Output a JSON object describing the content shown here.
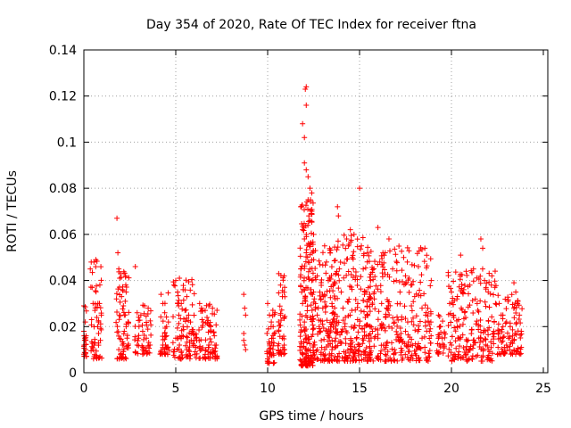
{
  "chart_data": {
    "type": "scatter",
    "title": "Day 354 of 2020, Rate Of TEC Index for receiver ftna",
    "xlabel": "GPS time / hours",
    "ylabel": "ROTI / TECUs",
    "xlim": [
      0,
      24
    ],
    "ylim": [
      0,
      0.14
    ],
    "xticks": [
      0,
      5,
      10,
      15,
      20,
      25
    ],
    "xtick_labels": [
      "0",
      "5",
      "10",
      "15",
      "20",
      "25"
    ],
    "yticks": [
      0,
      0.02,
      0.04,
      0.06,
      0.08,
      0.1,
      0.12,
      0.14
    ],
    "ytick_labels": [
      "0",
      "0.02",
      "0.04",
      "0.06",
      "0.08",
      "0.1",
      "0.12",
      "0.14"
    ],
    "grid": true,
    "marker": "+",
    "color": "#ff0000",
    "series": [
      {
        "name": "ROTI",
        "points": [
          [
            0.0,
            0.029
          ],
          [
            0.0,
            0.018
          ],
          [
            0.02,
            0.012
          ],
          [
            0.05,
            0.015
          ],
          [
            0.08,
            0.022
          ],
          [
            0.1,
            0.01
          ],
          [
            0.12,
            0.016
          ],
          [
            0.35,
            0.045
          ],
          [
            0.4,
            0.048
          ],
          [
            0.45,
            0.037
          ],
          [
            0.5,
            0.03
          ],
          [
            0.55,
            0.048
          ],
          [
            0.6,
            0.027
          ],
          [
            0.65,
            0.049
          ],
          [
            0.7,
            0.024
          ],
          [
            0.75,
            0.02
          ],
          [
            0.8,
            0.017
          ],
          [
            0.85,
            0.03
          ],
          [
            0.9,
            0.014
          ],
          [
            0.95,
            0.025
          ],
          [
            0.5,
            0.01
          ],
          [
            0.6,
            0.013
          ],
          [
            0.7,
            0.007
          ],
          [
            0.8,
            0.022
          ],
          [
            1.8,
            0.067
          ],
          [
            1.85,
            0.052
          ],
          [
            1.9,
            0.045
          ],
          [
            1.95,
            0.041
          ],
          [
            2.0,
            0.043
          ],
          [
            2.05,
            0.033
          ],
          [
            2.1,
            0.036
          ],
          [
            2.15,
            0.029
          ],
          [
            2.2,
            0.025
          ],
          [
            2.25,
            0.031
          ],
          [
            2.3,
            0.02
          ],
          [
            2.35,
            0.015
          ],
          [
            1.9,
            0.01
          ],
          [
            2.0,
            0.008
          ],
          [
            2.1,
            0.012
          ],
          [
            2.2,
            0.018
          ],
          [
            2.3,
            0.035
          ],
          [
            2.4,
            0.022
          ],
          [
            2.8,
            0.046
          ],
          [
            2.9,
            0.026
          ],
          [
            3.0,
            0.02
          ],
          [
            3.1,
            0.025
          ],
          [
            3.2,
            0.018
          ],
          [
            3.3,
            0.029
          ],
          [
            3.4,
            0.015
          ],
          [
            3.5,
            0.028
          ],
          [
            3.6,
            0.012
          ],
          [
            2.9,
            0.012
          ],
          [
            3.2,
            0.01
          ],
          [
            4.2,
            0.034
          ],
          [
            4.3,
            0.03
          ],
          [
            4.4,
            0.026
          ],
          [
            4.5,
            0.02
          ],
          [
            4.6,
            0.022
          ],
          [
            4.3,
            0.012
          ],
          [
            4.5,
            0.016
          ],
          [
            4.4,
            0.009
          ],
          [
            4.9,
            0.038
          ],
          [
            5.0,
            0.04
          ],
          [
            5.1,
            0.035
          ],
          [
            5.2,
            0.041
          ],
          [
            5.3,
            0.03
          ],
          [
            5.4,
            0.036
          ],
          [
            5.5,
            0.027
          ],
          [
            5.6,
            0.033
          ],
          [
            5.7,
            0.025
          ],
          [
            5.0,
            0.015
          ],
          [
            5.2,
            0.012
          ],
          [
            5.4,
            0.02
          ],
          [
            5.6,
            0.01
          ],
          [
            5.8,
            0.022
          ],
          [
            5.9,
            0.018
          ],
          [
            6.0,
            0.014
          ],
          [
            6.1,
            0.011
          ],
          [
            6.3,
            0.03
          ],
          [
            6.4,
            0.028
          ],
          [
            6.5,
            0.022
          ],
          [
            6.6,
            0.027
          ],
          [
            6.7,
            0.024
          ],
          [
            6.8,
            0.029
          ],
          [
            6.9,
            0.02
          ],
          [
            7.0,
            0.028
          ],
          [
            7.1,
            0.016
          ],
          [
            7.2,
            0.012
          ],
          [
            6.4,
            0.01
          ],
          [
            6.6,
            0.008
          ],
          [
            6.8,
            0.012
          ],
          [
            7.0,
            0.01
          ],
          [
            8.7,
            0.034
          ],
          [
            8.75,
            0.028
          ],
          [
            8.8,
            0.025
          ],
          [
            8.7,
            0.017
          ],
          [
            8.75,
            0.012
          ],
          [
            8.8,
            0.01
          ],
          [
            8.7,
            0.014
          ],
          [
            10.0,
            0.03
          ],
          [
            10.1,
            0.025
          ],
          [
            10.2,
            0.022
          ],
          [
            10.3,
            0.02
          ],
          [
            10.1,
            0.012
          ],
          [
            10.2,
            0.008
          ],
          [
            10.3,
            0.015
          ],
          [
            10.4,
            0.026
          ],
          [
            10.0,
            0.006
          ],
          [
            10.6,
            0.043
          ],
          [
            10.7,
            0.038
          ],
          [
            10.8,
            0.033
          ],
          [
            10.9,
            0.042
          ],
          [
            10.7,
            0.025
          ],
          [
            10.8,
            0.015
          ],
          [
            10.9,
            0.012
          ],
          [
            10.6,
            0.018
          ],
          [
            11.8,
            0.072
          ],
          [
            11.9,
            0.108
          ],
          [
            12.0,
            0.102
          ],
          [
            12.05,
            0.123
          ],
          [
            12.1,
            0.124
          ],
          [
            12.1,
            0.116
          ],
          [
            12.0,
            0.091
          ],
          [
            12.1,
            0.088
          ],
          [
            12.2,
            0.085
          ],
          [
            12.3,
            0.08
          ],
          [
            12.4,
            0.078
          ],
          [
            12.2,
            0.075
          ],
          [
            12.3,
            0.066
          ],
          [
            12.4,
            0.07
          ],
          [
            11.9,
            0.062
          ],
          [
            12.0,
            0.058
          ],
          [
            12.1,
            0.052
          ],
          [
            12.2,
            0.048
          ],
          [
            12.3,
            0.045
          ],
          [
            12.4,
            0.04
          ],
          [
            12.5,
            0.06
          ],
          [
            12.6,
            0.053
          ],
          [
            12.7,
            0.042
          ],
          [
            12.5,
            0.035
          ],
          [
            12.6,
            0.03
          ],
          [
            12.7,
            0.025
          ],
          [
            12.8,
            0.02
          ],
          [
            12.9,
            0.032
          ],
          [
            13.0,
            0.028
          ],
          [
            11.8,
            0.045
          ],
          [
            11.9,
            0.03
          ],
          [
            12.0,
            0.022
          ],
          [
            12.1,
            0.015
          ],
          [
            12.2,
            0.01
          ],
          [
            12.3,
            0.005
          ],
          [
            11.85,
            0.035
          ],
          [
            12.5,
            0.012
          ],
          [
            12.7,
            0.01
          ],
          [
            12.9,
            0.008
          ],
          [
            13.1,
            0.055
          ],
          [
            13.2,
            0.048
          ],
          [
            13.3,
            0.04
          ],
          [
            13.4,
            0.052
          ],
          [
            13.5,
            0.03
          ],
          [
            13.6,
            0.022
          ],
          [
            13.7,
            0.015
          ],
          [
            13.3,
            0.012
          ],
          [
            13.5,
            0.01
          ],
          [
            13.8,
            0.072
          ],
          [
            13.85,
            0.068
          ],
          [
            13.9,
            0.045
          ],
          [
            14.0,
            0.035
          ],
          [
            14.1,
            0.028
          ],
          [
            14.2,
            0.02
          ],
          [
            14.3,
            0.058
          ],
          [
            14.4,
            0.055
          ],
          [
            14.5,
            0.062
          ],
          [
            14.6,
            0.05
          ],
          [
            14.7,
            0.06
          ],
          [
            14.8,
            0.042
          ],
          [
            14.9,
            0.03
          ],
          [
            15.0,
            0.08
          ],
          [
            15.1,
            0.055
          ],
          [
            15.2,
            0.045
          ],
          [
            15.3,
            0.035
          ],
          [
            15.4,
            0.025
          ],
          [
            15.5,
            0.015
          ],
          [
            14.5,
            0.012
          ],
          [
            14.8,
            0.01
          ],
          [
            15.1,
            0.008
          ],
          [
            15.6,
            0.04
          ],
          [
            15.8,
            0.035
          ],
          [
            16.0,
            0.063
          ],
          [
            16.1,
            0.048
          ],
          [
            16.2,
            0.03
          ],
          [
            16.4,
            0.052
          ],
          [
            16.6,
            0.058
          ],
          [
            16.8,
            0.045
          ],
          [
            17.0,
            0.04
          ],
          [
            17.2,
            0.035
          ],
          [
            17.4,
            0.05
          ],
          [
            17.5,
            0.042
          ],
          [
            17.6,
            0.048
          ],
          [
            17.8,
            0.038
          ],
          [
            18.0,
            0.033
          ],
          [
            18.2,
            0.046
          ],
          [
            18.4,
            0.028
          ],
          [
            15.7,
            0.018
          ],
          [
            16.0,
            0.015
          ],
          [
            16.3,
            0.012
          ],
          [
            16.6,
            0.02
          ],
          [
            16.9,
            0.01
          ],
          [
            17.2,
            0.014
          ],
          [
            17.5,
            0.018
          ],
          [
            17.8,
            0.012
          ],
          [
            18.1,
            0.01
          ],
          [
            18.4,
            0.015
          ],
          [
            18.6,
            0.025
          ],
          [
            18.8,
            0.018
          ],
          [
            18.9,
            0.04
          ],
          [
            19.3,
            0.025
          ],
          [
            19.4,
            0.02
          ],
          [
            19.5,
            0.015
          ],
          [
            19.6,
            0.012
          ],
          [
            19.9,
            0.03
          ],
          [
            20.0,
            0.035
          ],
          [
            20.1,
            0.025
          ],
          [
            20.3,
            0.032
          ],
          [
            20.5,
            0.051
          ],
          [
            20.6,
            0.035
          ],
          [
            20.8,
            0.044
          ],
          [
            21.0,
            0.038
          ],
          [
            21.2,
            0.045
          ],
          [
            21.4,
            0.03
          ],
          [
            21.6,
            0.058
          ],
          [
            21.7,
            0.054
          ],
          [
            21.8,
            0.04
          ],
          [
            22.0,
            0.035
          ],
          [
            22.2,
            0.042
          ],
          [
            22.4,
            0.03
          ],
          [
            20.0,
            0.012
          ],
          [
            20.4,
            0.015
          ],
          [
            20.8,
            0.01
          ],
          [
            21.2,
            0.012
          ],
          [
            21.6,
            0.015
          ],
          [
            22.0,
            0.01
          ],
          [
            22.3,
            0.018
          ],
          [
            22.6,
            0.03
          ],
          [
            22.8,
            0.025
          ],
          [
            23.0,
            0.022
          ],
          [
            23.2,
            0.02
          ],
          [
            23.4,
            0.039
          ],
          [
            23.5,
            0.035
          ],
          [
            23.6,
            0.03
          ],
          [
            23.7,
            0.025
          ],
          [
            23.8,
            0.018
          ],
          [
            23.0,
            0.012
          ],
          [
            23.4,
            0.014
          ],
          [
            23.8,
            0.011
          ]
        ],
        "clusters": [
          {
            "x": [
              0.0,
              0.15
            ],
            "y": [
              0.007,
              0.029
            ],
            "n": 20
          },
          {
            "x": [
              0.35,
              1.0
            ],
            "y": [
              0.006,
              0.049
            ],
            "n": 45
          },
          {
            "x": [
              1.75,
              2.45
            ],
            "y": [
              0.006,
              0.045
            ],
            "n": 60
          },
          {
            "x": [
              2.75,
              3.65
            ],
            "y": [
              0.008,
              0.03
            ],
            "n": 45
          },
          {
            "x": [
              4.15,
              4.65
            ],
            "y": [
              0.008,
              0.035
            ],
            "n": 35
          },
          {
            "x": [
              4.85,
              6.15
            ],
            "y": [
              0.006,
              0.041
            ],
            "n": 90
          },
          {
            "x": [
              6.25,
              7.25
            ],
            "y": [
              0.006,
              0.03
            ],
            "n": 65
          },
          {
            "x": [
              9.95,
              10.45
            ],
            "y": [
              0.004,
              0.03
            ],
            "n": 35
          },
          {
            "x": [
              10.55,
              10.95
            ],
            "y": [
              0.008,
              0.043
            ],
            "n": 40
          },
          {
            "x": [
              11.75,
              12.5
            ],
            "y": [
              0.003,
              0.075
            ],
            "n": 170
          },
          {
            "x": [
              12.4,
              13.8
            ],
            "y": [
              0.005,
              0.055
            ],
            "n": 150
          },
          {
            "x": [
              13.7,
              15.6
            ],
            "y": [
              0.005,
              0.06
            ],
            "n": 190
          },
          {
            "x": [
              15.5,
              18.9
            ],
            "y": [
              0.005,
              0.055
            ],
            "n": 260
          },
          {
            "x": [
              19.2,
              19.7
            ],
            "y": [
              0.008,
              0.026
            ],
            "n": 25
          },
          {
            "x": [
              19.8,
              22.45
            ],
            "y": [
              0.005,
              0.045
            ],
            "n": 190
          },
          {
            "x": [
              22.5,
              23.9
            ],
            "y": [
              0.008,
              0.035
            ],
            "n": 90
          }
        ]
      }
    ]
  }
}
